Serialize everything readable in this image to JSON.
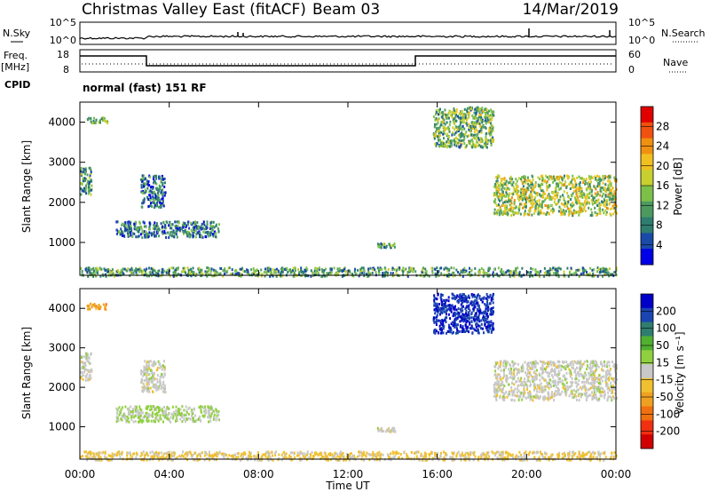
{
  "header": {
    "title": "Christmas Valley East (fitACF)",
    "beam": "Beam 03",
    "date": "14/Mar/2019"
  },
  "status_panel": {
    "nsky_label": "N.Sky",
    "nsearch_label": "N.Search",
    "left_ticks": [
      "10^5",
      "10^0"
    ],
    "right_ticks": [
      "10^5",
      "10^0"
    ],
    "freq_label": "Freq.",
    "freq_unit": "[MHz]",
    "freq_ticks": [
      "18",
      "8"
    ],
    "nave_label": "Nave",
    "nave_ticks": [
      "60",
      "0"
    ],
    "cpid_label": "CPID",
    "cpid_text": "normal (fast) 151 RF"
  },
  "colorbars": {
    "power": {
      "label": "Power [dB]",
      "ticks": [
        "28",
        "24",
        "20",
        "16",
        "12",
        "8",
        "4"
      ],
      "colors": [
        "#0000e6",
        "#1a4aa8",
        "#2e7d6e",
        "#4c9a60",
        "#7cc04a",
        "#c8d030",
        "#f0c020",
        "#f09010",
        "#f05010",
        "#e00000"
      ]
    },
    "velocity": {
      "label": "Velocity [m s⁻¹]",
      "ticks": [
        "200",
        "100",
        "50",
        "15",
        "-15",
        "-50",
        "-100",
        "-200"
      ],
      "colors": [
        "#0000c8",
        "#1a44b0",
        "#2e7d6e",
        "#50b030",
        "#90d040",
        "#c8c8c8",
        "#f0c030",
        "#f0a020",
        "#f07010",
        "#f03010",
        "#d00000"
      ]
    }
  },
  "time_axis": {
    "xlabel": "Time UT",
    "ticks": [
      "00:00",
      "04:00",
      "08:00",
      "12:00",
      "16:00",
      "20:00",
      "00:00"
    ]
  },
  "chart_data": [
    {
      "type": "heatmap",
      "panel": "power",
      "xlabel": "Time UT",
      "ylabel": "Slant Range [km]",
      "xlim": [
        0,
        24
      ],
      "ylim": [
        180,
        4500
      ],
      "yticks": [
        1000,
        2000,
        3000,
        4000
      ],
      "colorbar_label": "Power [dB]",
      "colorbar_range": [
        0,
        30
      ],
      "echo_regions": [
        {
          "t": [
            0.0,
            0.5
          ],
          "r": [
            2200,
            2900
          ],
          "value": 10
        },
        {
          "t": [
            0.3,
            1.2
          ],
          "r": [
            4000,
            4150
          ],
          "value": 12
        },
        {
          "t": [
            1.6,
            6.2
          ],
          "r": [
            1150,
            1550
          ],
          "value": 8
        },
        {
          "t": [
            2.7,
            3.8
          ],
          "r": [
            1900,
            2700
          ],
          "value": 7
        },
        {
          "t": [
            13.3,
            14.1
          ],
          "r": [
            900,
            1000
          ],
          "value": 10
        },
        {
          "t": [
            15.8,
            18.5
          ],
          "r": [
            3400,
            4400
          ],
          "value": 12
        },
        {
          "t": [
            18.5,
            24.0
          ],
          "r": [
            1700,
            2700
          ],
          "value": 15
        },
        {
          "t": [
            0.0,
            24.0
          ],
          "r": [
            180,
            400
          ],
          "value": 10
        }
      ]
    },
    {
      "type": "heatmap",
      "panel": "velocity",
      "xlabel": "Time UT",
      "ylabel": "Slant Range [km]",
      "xlim": [
        0,
        24
      ],
      "ylim": [
        180,
        4500
      ],
      "yticks": [
        1000,
        2000,
        3000,
        4000
      ],
      "colorbar_label": "Velocity [m s⁻¹]",
      "colorbar_range": [
        -250,
        250
      ],
      "echo_regions": [
        {
          "t": [
            0.0,
            0.5
          ],
          "r": [
            2200,
            2900
          ],
          "value": 0
        },
        {
          "t": [
            0.3,
            1.2
          ],
          "r": [
            4000,
            4150
          ],
          "value": -90
        },
        {
          "t": [
            1.6,
            6.2
          ],
          "r": [
            1150,
            1550
          ],
          "value": 25
        },
        {
          "t": [
            2.7,
            3.8
          ],
          "r": [
            1900,
            2700
          ],
          "value": 0
        },
        {
          "t": [
            13.3,
            14.1
          ],
          "r": [
            900,
            1000
          ],
          "value": 0
        },
        {
          "t": [
            15.8,
            18.5
          ],
          "r": [
            3400,
            4400
          ],
          "value": 200
        },
        {
          "t": [
            18.5,
            24.0
          ],
          "r": [
            1700,
            2700
          ],
          "value": 0
        },
        {
          "t": [
            0.0,
            24.0
          ],
          "r": [
            180,
            400
          ],
          "value": -30
        }
      ]
    }
  ]
}
